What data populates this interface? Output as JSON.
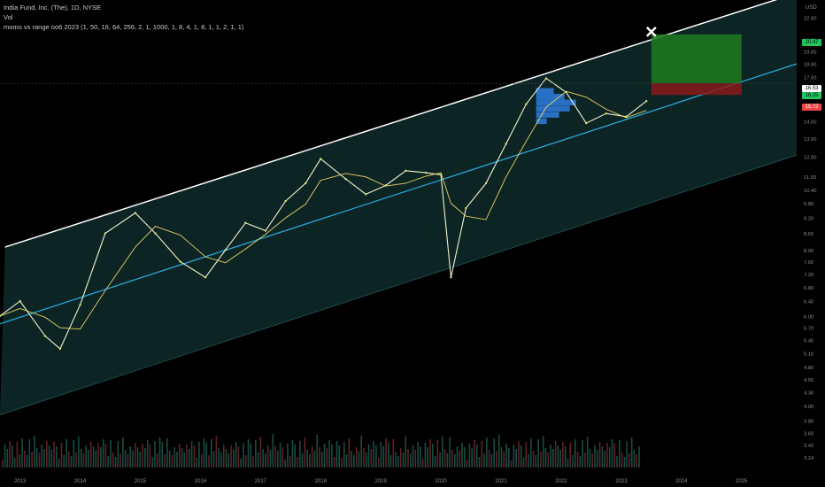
{
  "header": {
    "title": "India Fund, Inc. (The), 1D, NYSE",
    "volume": "Vol",
    "indicator": "momo vs range oo6 2023 (1, 50, 16, 64, 256, 2, 1, 1000, 1, 8, 4, 1, 8, 1, 1, 2, 1, 1)"
  },
  "currency": "USD",
  "colors": {
    "background": "#000000",
    "channel_fill": "#0f2a2a",
    "upper_line": "#ffffff",
    "mid_line": "#2aa7d8",
    "price_line": "#f0f3d0",
    "ma_line": "#e6d36a",
    "target_zone": "#1e7a1e",
    "stop_zone": "#8a1a1a",
    "volume_profile": "#2f7de0",
    "marker": "#ffffff"
  },
  "icons": {
    "target": "x-mark-icon"
  },
  "badges": {
    "target": "20.47",
    "price_a": "16.53",
    "price_b": "16.25",
    "stop": "15.72"
  },
  "chart_data": {
    "type": "line",
    "title": "India Fund, Inc. (The), 1D, NYSE",
    "scale": "log",
    "ylim": [
      3.1,
      23.5
    ],
    "xlim": [
      "2012-09",
      "2025-12"
    ],
    "x_ticks": [
      "2013",
      "2014",
      "2015",
      "2016",
      "2017",
      "2018",
      "2019",
      "2020",
      "2021",
      "2022",
      "2023",
      "2024",
      "2025"
    ],
    "y_ticks": [
      "22.00",
      "20.00",
      "19.00",
      "18.00",
      "17.00",
      "16.00",
      "15.00",
      "14.00",
      "13.00",
      "12.00",
      "11.00",
      "10.40",
      "9.80",
      "9.20",
      "8.60",
      "8.00",
      "7.60",
      "7.20",
      "6.80",
      "6.40",
      "6.00",
      "5.70",
      "5.40",
      "5.10",
      "4.80",
      "4.55",
      "4.30",
      "4.05",
      "3.80",
      "3.60",
      "3.42",
      "3.24"
    ],
    "series": [
      {
        "x": [
          "2012-09",
          "2013-01",
          "2013-06",
          "2013-09",
          "2014-01",
          "2014-06",
          "2014-12",
          "2015-04",
          "2015-09",
          "2016-02",
          "2016-06",
          "2016-10",
          "2017-02",
          "2017-06",
          "2017-10",
          "2018-01",
          "2018-06",
          "2018-10",
          "2019-02",
          "2019-06",
          "2019-10",
          "2020-01",
          "2020-03",
          "2020-06",
          "2020-10",
          "2021-02",
          "2021-06",
          "2021-10",
          "2022-02",
          "2022-06",
          "2022-10",
          "2023-02",
          "2023-06"
        ],
        "values": [
          6.0,
          6.4,
          5.5,
          5.2,
          6.3,
          8.6,
          9.4,
          8.6,
          7.6,
          7.1,
          8.0,
          9.0,
          8.7,
          9.9,
          10.7,
          11.9,
          10.9,
          10.2,
          10.6,
          11.3,
          11.2,
          11.1,
          7.1,
          9.6,
          10.7,
          12.7,
          15.1,
          16.9,
          15.9,
          13.9,
          14.5,
          14.3,
          15.3
        ]
      }
    ],
    "channel": {
      "upper": [
        [
          "2012-10",
          8.1
        ],
        [
          "2025-12",
          24.5
        ]
      ],
      "middle": [
        [
          "2012-09",
          5.8
        ],
        [
          "2025-12",
          18.0
        ]
      ],
      "lower": [
        [
          "2012-09",
          3.9
        ],
        [
          "2025-12",
          12.1
        ]
      ]
    },
    "target_zone": [
      16.53,
      20.47
    ],
    "stop_zone": [
      15.72,
      16.53
    ],
    "grid": false
  }
}
